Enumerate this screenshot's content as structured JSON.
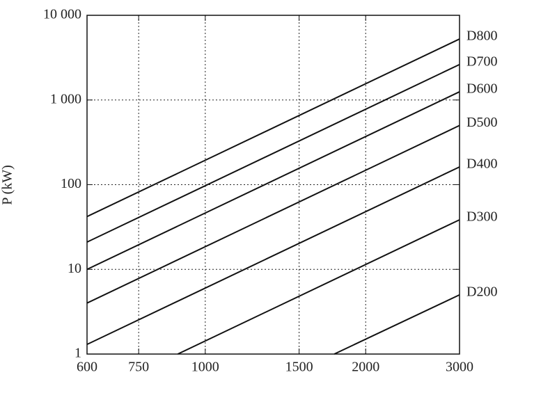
{
  "chart_data": {
    "type": "line",
    "y_label": "P (kW)",
    "xscale": "log",
    "yscale": "log",
    "grid": true,
    "color": "#111111",
    "xlim": [
      600,
      3000
    ],
    "xticks": [
      600,
      750,
      1000,
      1500,
      2000,
      3000
    ],
    "ylim": [
      1,
      10000
    ],
    "yticks": [
      1,
      10,
      100,
      {
        "value": 1000,
        "label": "1 000"
      },
      {
        "value": 10000,
        "label": "10 000"
      }
    ],
    "series": [
      {
        "name": "D800",
        "x": [
          600,
          3000
        ],
        "values": [
          42,
          5250
        ]
      },
      {
        "name": "D700",
        "x": [
          600,
          3000
        ],
        "values": [
          21,
          2625
        ]
      },
      {
        "name": "D600",
        "x": [
          600,
          3000
        ],
        "values": [
          10,
          1250
        ]
      },
      {
        "name": "D500",
        "x": [
          600,
          3000
        ],
        "values": [
          4,
          500
        ]
      },
      {
        "name": "D400",
        "x": [
          600,
          3000
        ],
        "values": [
          1.3,
          162
        ]
      },
      {
        "name": "D300",
        "x": [
          888,
          3000
        ],
        "values": [
          1,
          38.5
        ]
      },
      {
        "name": "D200",
        "x": [
          1746,
          3000
        ],
        "values": [
          1,
          5
        ]
      }
    ]
  }
}
